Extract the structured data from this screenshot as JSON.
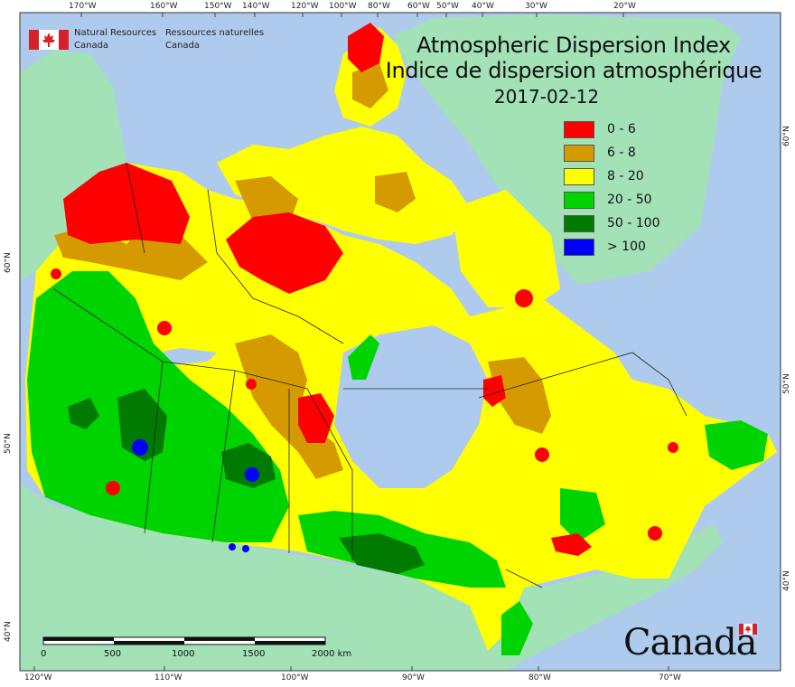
{
  "agency": {
    "name_en_line1": "Natural Resources",
    "name_en_line2": "Canada",
    "name_fr_line1": "Ressources naturelles",
    "name_fr_line2": "Canada"
  },
  "title": {
    "en": "Atmospheric Dispersion Index",
    "fr": "Indice de dispersion atmosphérique",
    "date": "2017-02-12"
  },
  "legend": {
    "items": [
      {
        "label": "0 - 6",
        "color": "#ff0000"
      },
      {
        "label": "6 - 8",
        "color": "#d49a00"
      },
      {
        "label": "8 - 20",
        "color": "#ffff00"
      },
      {
        "label": "20 - 50",
        "color": "#00d400"
      },
      {
        "label": "50 - 100",
        "color": "#007a00"
      },
      {
        "label": "> 100",
        "color": "#0000ff"
      }
    ]
  },
  "graticule": {
    "top_labels": [
      "170°W",
      "160°W",
      "150°W",
      "140°W",
      "120°W",
      "100°W",
      "80°W",
      "60°W",
      "50°W",
      "40°W",
      "30°W",
      "20°W"
    ],
    "bottom_labels": [
      "120°W",
      "110°W",
      "100°W",
      "90°W",
      "80°W",
      "70°W"
    ],
    "left_labels": [
      "60°N",
      "50°N",
      "40°N"
    ],
    "right_labels": [
      "60°N",
      "50°N",
      "40°N"
    ]
  },
  "scalebar": {
    "ticks": [
      "0",
      "500",
      "1000",
      "1500",
      "2000 km"
    ]
  },
  "wordmark": "Canada",
  "colors": {
    "ocean": "#aecbee",
    "foreign_land": "#a2e2b6",
    "border": "#222222"
  }
}
